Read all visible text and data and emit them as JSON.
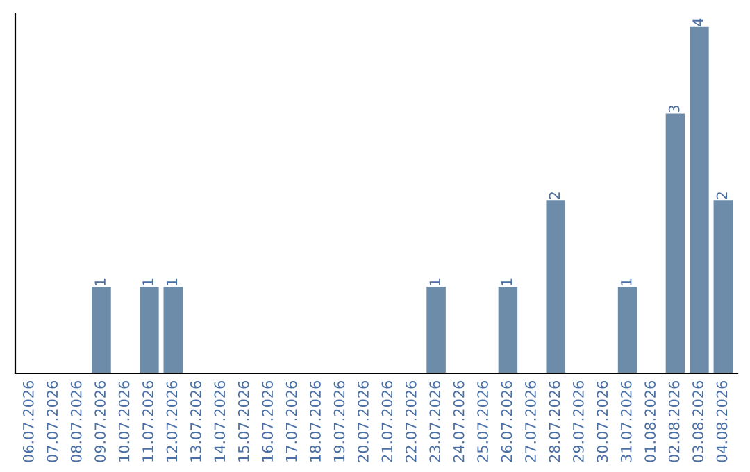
{
  "chart_data": {
    "type": "bar",
    "categories": [
      "06.07.2026",
      "07.07.2026",
      "08.07.2026",
      "09.07.2026",
      "10.07.2026",
      "11.07.2026",
      "12.07.2026",
      "13.07.2026",
      "14.07.2026",
      "15.07.2026",
      "16.07.2026",
      "17.07.2026",
      "18.07.2026",
      "19.07.2026",
      "20.07.2026",
      "21.07.2026",
      "22.07.2026",
      "23.07.2026",
      "24.07.2026",
      "25.07.2026",
      "26.07.2026",
      "27.07.2026",
      "28.07.2026",
      "29.07.2026",
      "30.07.2026",
      "31.07.2026",
      "01.08.2026",
      "02.08.2026",
      "03.08.2026",
      "04.08.2026"
    ],
    "values": [
      0,
      0,
      0,
      1,
      0,
      1,
      1,
      0,
      0,
      0,
      0,
      0,
      0,
      0,
      0,
      0,
      0,
      1,
      0,
      0,
      1,
      0,
      2,
      0,
      0,
      1,
      0,
      3,
      4,
      2
    ],
    "value_labels": [
      null,
      null,
      null,
      "1",
      null,
      "1",
      "1",
      null,
      null,
      null,
      null,
      null,
      null,
      null,
      null,
      null,
      null,
      "1",
      null,
      null,
      "1",
      null,
      "2",
      null,
      null,
      "1",
      null,
      "3",
      "4",
      "2"
    ],
    "color": "#6d8ca9",
    "ylim": [
      0,
      4.15
    ],
    "tick_labels": "x",
    "grid": false
  }
}
